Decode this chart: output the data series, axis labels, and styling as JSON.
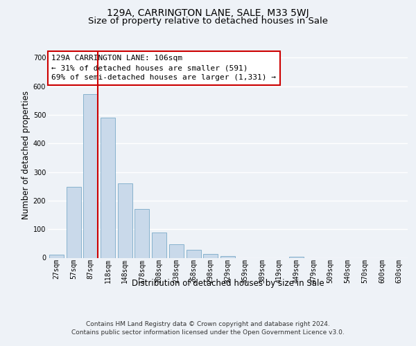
{
  "title_line1": "129A, CARRINGTON LANE, SALE, M33 5WJ",
  "title_line2": "Size of property relative to detached houses in Sale",
  "xlabel": "Distribution of detached houses by size in Sale",
  "ylabel": "Number of detached properties",
  "bin_labels": [
    "27sqm",
    "57sqm",
    "87sqm",
    "118sqm",
    "148sqm",
    "178sqm",
    "208sqm",
    "238sqm",
    "268sqm",
    "298sqm",
    "329sqm",
    "359sqm",
    "389sqm",
    "419sqm",
    "449sqm",
    "479sqm",
    "509sqm",
    "540sqm",
    "570sqm",
    "600sqm",
    "630sqm"
  ],
  "bar_heights": [
    10,
    247,
    573,
    491,
    260,
    170,
    88,
    47,
    27,
    13,
    7,
    0,
    0,
    0,
    3,
    0,
    0,
    0,
    0,
    0,
    0
  ],
  "bar_color": "#c9d9ea",
  "bar_edge_color": "#7aaac8",
  "vline_color": "#cc0000",
  "vline_x": 2.425,
  "annotation_title": "129A CARRINGTON LANE: 106sqm",
  "annotation_line2": "← 31% of detached houses are smaller (591)",
  "annotation_line3": "69% of semi-detached houses are larger (1,331) →",
  "annotation_box_facecolor": "#ffffff",
  "annotation_box_edgecolor": "#cc0000",
  "ylim": [
    0,
    720
  ],
  "yticks": [
    0,
    100,
    200,
    300,
    400,
    500,
    600,
    700
  ],
  "bg_color": "#eef2f7",
  "plot_bg_color": "#eef2f7",
  "grid_color": "#ffffff",
  "title_fontsize": 10,
  "subtitle_fontsize": 9.5,
  "ylabel_fontsize": 8.5,
  "xlabel_fontsize": 8.5,
  "tick_fontsize": 7,
  "annotation_fontsize": 8,
  "footer_fontsize": 6.5,
  "footer_line1": "Contains HM Land Registry data © Crown copyright and database right 2024.",
  "footer_line2": "Contains public sector information licensed under the Open Government Licence v3.0."
}
